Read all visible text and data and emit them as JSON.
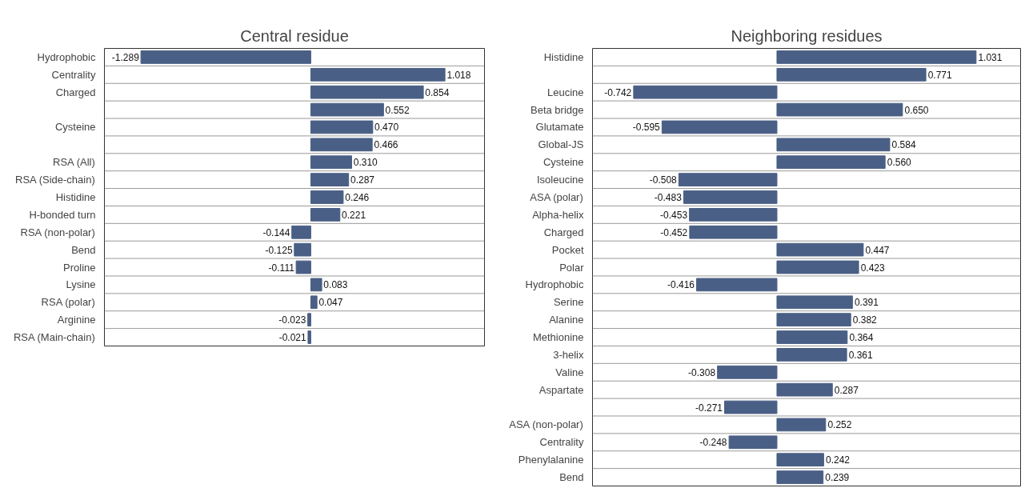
{
  "chart_data": [
    {
      "type": "bar",
      "orientation": "horizontal",
      "title": "Central residue",
      "grid": "y",
      "color": "#4a5f85",
      "categories": [
        "Hydrophobic",
        "Centrality",
        "Charged",
        null,
        "Cysteine",
        null,
        "RSA (All)",
        "RSA (Side-chain)",
        "Histidine",
        "H-bonded turn",
        "RSA (non-polar)",
        "Bend",
        "Proline",
        "Lysine",
        "RSA (polar)",
        "Arginine",
        "RSA (Main-chain)"
      ],
      "values": [
        -1.289,
        1.018,
        0.854,
        0.552,
        0.47,
        0.466,
        0.31,
        0.287,
        0.246,
        0.221,
        -0.144,
        -0.125,
        -0.111,
        0.083,
        0.047,
        -0.023,
        -0.021
      ],
      "value_labels": [
        "-1.289",
        "1.018",
        "0.854",
        "0.552",
        "0.470",
        "0.466",
        "0.310",
        "0.287",
        "0.246",
        "0.221",
        "-0.144",
        "-0.125",
        "-0.111",
        "0.083",
        "0.047",
        "-0.023",
        "-0.021"
      ]
    },
    {
      "type": "bar",
      "orientation": "horizontal",
      "title": "Neighboring residues",
      "grid": "y",
      "color": "#4a5f85",
      "categories": [
        "Histidine",
        null,
        "Leucine",
        "Beta bridge",
        "Glutamate",
        "Global-JS",
        "Cysteine",
        "Isoleucine",
        "ASA (polar)",
        "Alpha-helix",
        "Charged",
        "Pocket",
        "Polar",
        "Hydrophobic",
        "Serine",
        "Alanine",
        "Methionine",
        "3-helix",
        "Valine",
        "Aspartate",
        null,
        "ASA (non-polar)",
        "Centrality",
        "Phenylalanine",
        "Bend"
      ],
      "values": [
        1.031,
        0.771,
        -0.742,
        0.65,
        -0.595,
        0.584,
        0.56,
        -0.508,
        -0.483,
        -0.453,
        -0.452,
        0.447,
        0.423,
        -0.416,
        0.391,
        0.382,
        0.364,
        0.361,
        -0.308,
        0.287,
        -0.271,
        0.252,
        -0.248,
        0.242,
        0.239
      ],
      "value_labels": [
        "1.031",
        "0.771",
        "-0.742",
        "0.650",
        "-0.595",
        "0.584",
        "0.560",
        "-0.508",
        "-0.483",
        "-0.453",
        "-0.452",
        "0.447",
        "0.423",
        "-0.416",
        "0.391",
        "0.382",
        "0.364",
        "0.361",
        "-0.308",
        "0.287",
        "-0.271",
        "0.252",
        "-0.248",
        "0.242",
        "0.239"
      ]
    }
  ]
}
